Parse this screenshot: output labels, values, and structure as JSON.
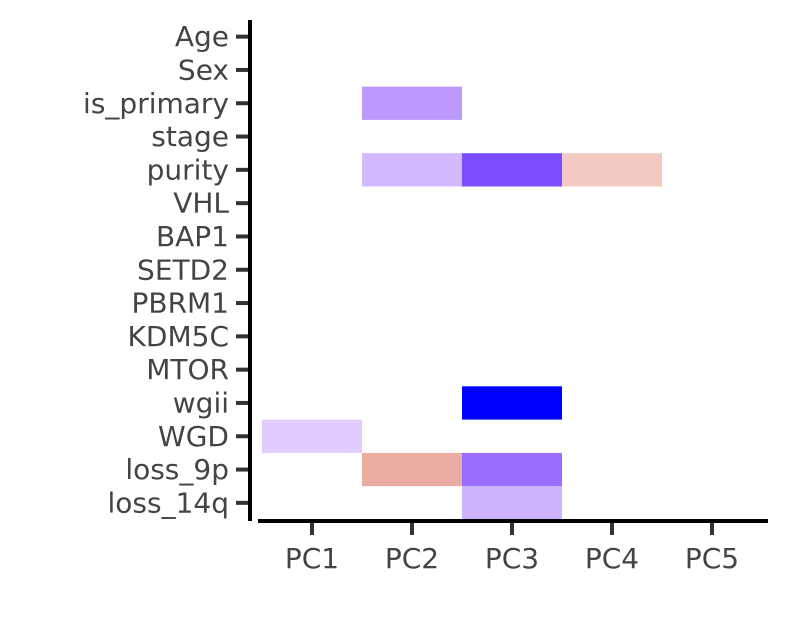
{
  "chart_data": {
    "type": "heatmap",
    "x_categories": [
      "PC1",
      "PC2",
      "PC3",
      "PC4",
      "PC5"
    ],
    "y_categories": [
      "Age",
      "Sex",
      "is_primary",
      "stage",
      "purity",
      "VHL",
      "BAP1",
      "SETD2",
      "PBRM1",
      "KDM5C",
      "MTOR",
      "wgii",
      "WGD",
      "loss_9p",
      "loss_14q"
    ],
    "cells": [
      {
        "x": "PC2",
        "y": "is_primary",
        "color": "#bb99ff"
      },
      {
        "x": "PC2",
        "y": "purity",
        "color": "#d3b9ff"
      },
      {
        "x": "PC3",
        "y": "purity",
        "color": "#7c4dff"
      },
      {
        "x": "PC4",
        "y": "purity",
        "color": "#f3c9c3"
      },
      {
        "x": "PC3",
        "y": "wgii",
        "color": "#0000ff"
      },
      {
        "x": "PC1",
        "y": "WGD",
        "color": "#e1ccff"
      },
      {
        "x": "PC2",
        "y": "loss_9p",
        "color": "#ebada3"
      },
      {
        "x": "PC3",
        "y": "loss_9p",
        "color": "#9b6dff"
      },
      {
        "x": "PC3",
        "y": "loss_14q",
        "color": "#ceb3ff"
      }
    ],
    "grid": false,
    "legend": "none",
    "title": "",
    "xlabel": "",
    "ylabel": "",
    "colors": {
      "axis": "#000000",
      "tick": "#333333",
      "label": "#444444"
    }
  }
}
